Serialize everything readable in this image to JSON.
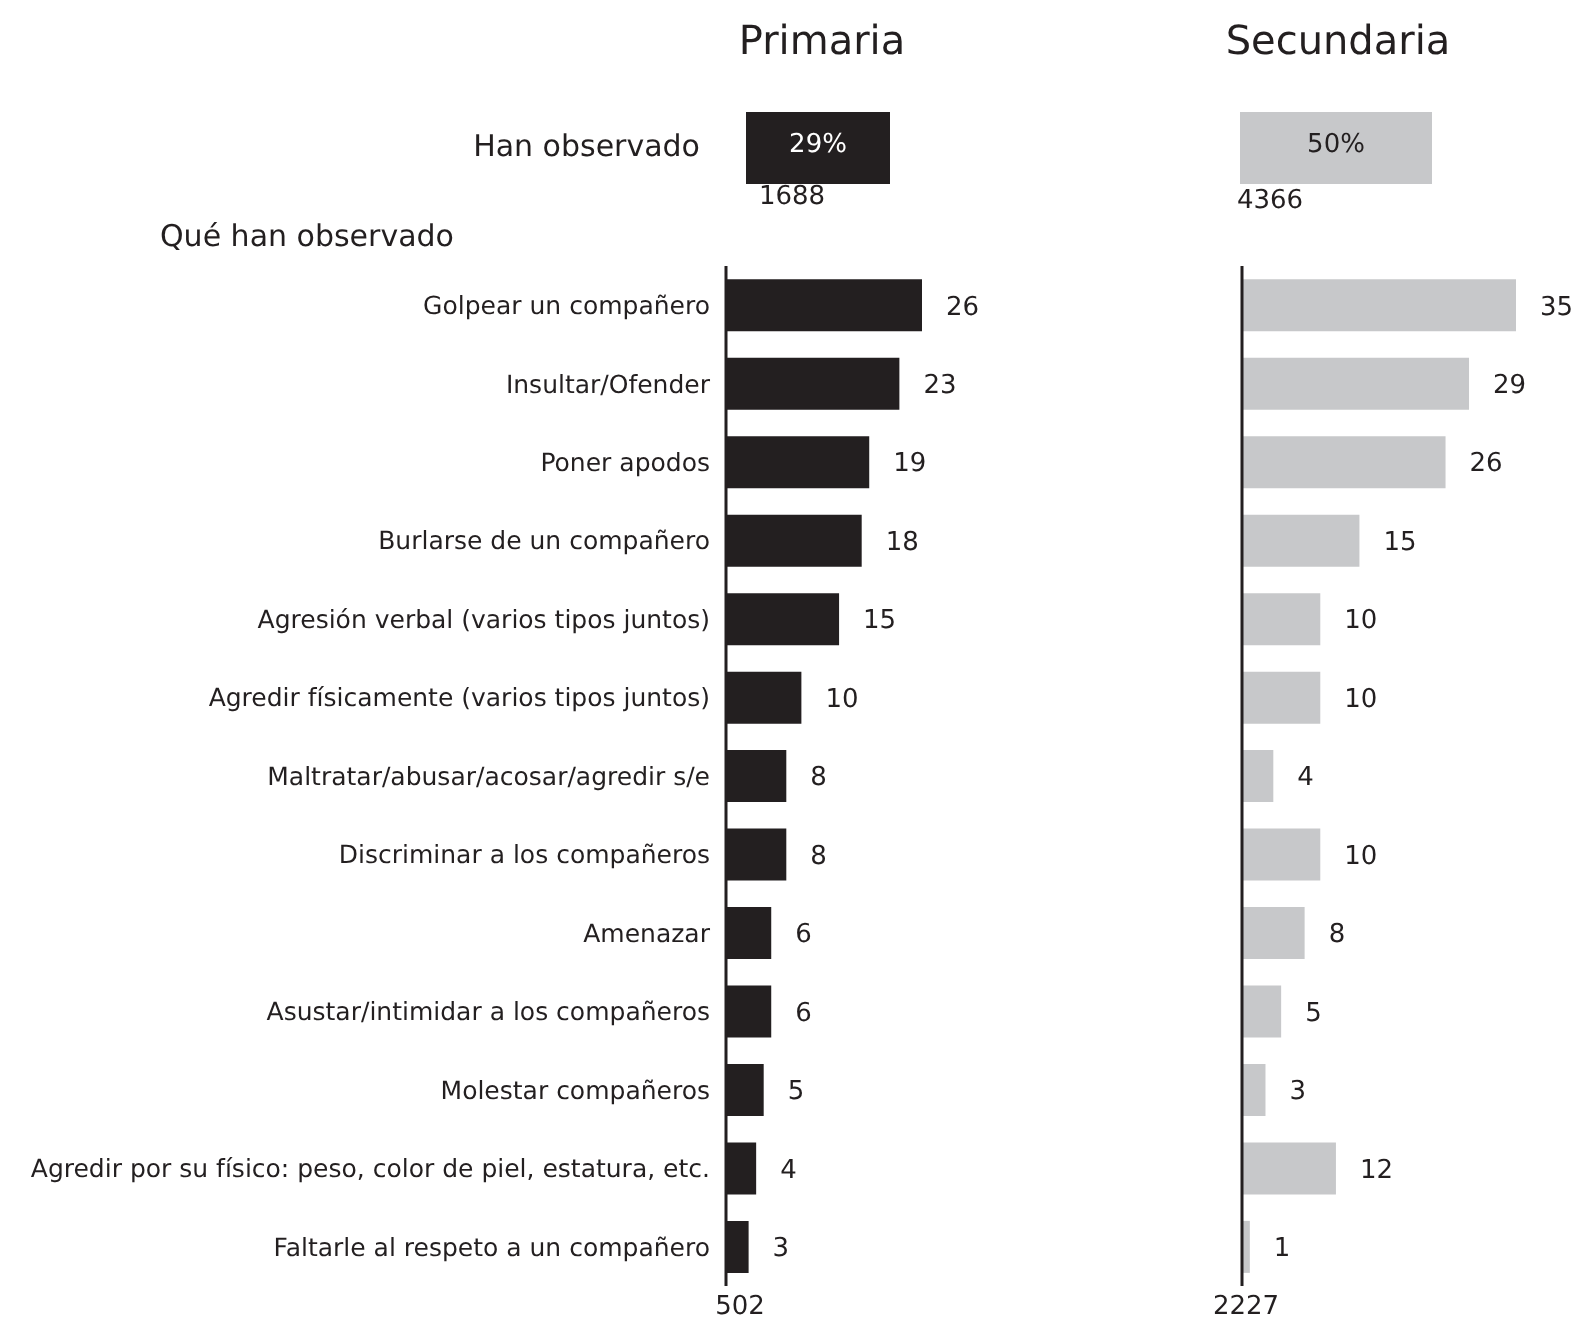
{
  "chart_data": [
    {
      "type": "bar",
      "orientation": "horizontal",
      "title": "Primaria",
      "categories": [
        "Golpear un compañero",
        "Insultar/Ofender",
        "Poner apodos",
        "Burlarse de un compañero",
        "Agresión verbal (varios tipos juntos)",
        "Agredir físicamente (varios tipos juntos)",
        "Maltratar/abusar/acosar/agredir s/e",
        "Discriminar a los compañeros",
        "Amenazar",
        "Asustar/intimidar a los compañeros",
        "Molestar compañeros",
        "Agredir por su físico: peso, color de piel, estatura, etc.",
        "Faltarle al respeto a un compañero"
      ],
      "values": [
        26,
        23,
        19,
        18,
        15,
        10,
        8,
        8,
        6,
        6,
        5,
        4,
        3
      ],
      "color": "#231f20",
      "data_labels": true,
      "tick_labels": "y",
      "annotations": [
        "Han observado",
        "29%",
        "1688",
        "Qué han observado",
        "502"
      ]
    },
    {
      "type": "bar",
      "orientation": "horizontal",
      "title": "Secundaria",
      "categories": [
        null,
        null,
        null,
        null,
        null,
        null,
        null,
        null,
        null,
        null,
        null,
        null,
        null
      ],
      "values": [
        35,
        29,
        26,
        15,
        10,
        10,
        4,
        10,
        8,
        5,
        3,
        12,
        1
      ],
      "color": "#c7c8ca",
      "data_labels": true,
      "tick_labels": false,
      "annotations": [
        "50%",
        "4366",
        "2227"
      ]
    }
  ]
}
